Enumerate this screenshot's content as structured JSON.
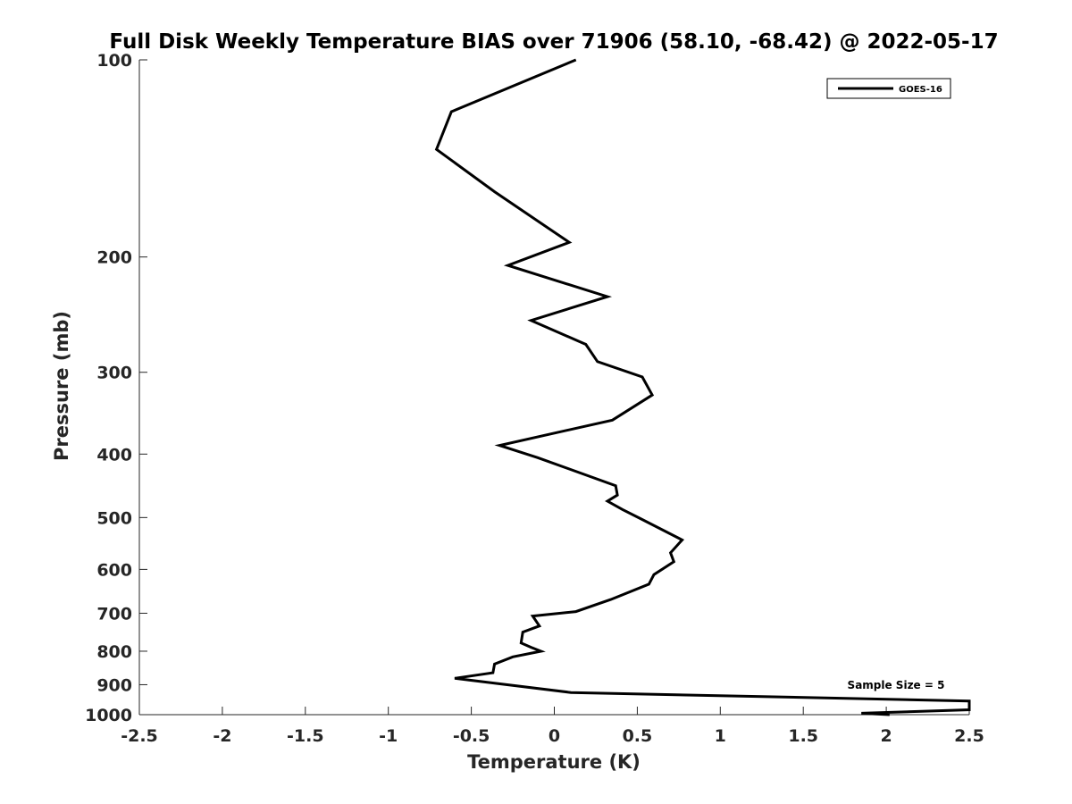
{
  "chart_data": {
    "type": "line",
    "title": "Full Disk Weekly Temperature BIAS over 71906 (58.10, -68.42) @ 2022-05-17",
    "xlabel": "Temperature (K)",
    "ylabel": "Pressure (mb)",
    "xlim": [
      -2.5,
      2.5
    ],
    "ylim": [
      100,
      1000
    ],
    "y_scale": "log",
    "y_reversed": true,
    "x_ticks": [
      "-2.5",
      "-2",
      "-1.5",
      "-1",
      "-0.5",
      "0",
      "0.5",
      "1",
      "1.5",
      "2",
      "2.5"
    ],
    "y_ticks": [
      "100",
      "200",
      "300",
      "400",
      "500",
      "600",
      "700",
      "800",
      "900",
      "1000"
    ],
    "grid": false,
    "legend_position": "top-right",
    "annotation": "Sample Size = 5",
    "series": [
      {
        "name": "GOES-16",
        "color": "#000000",
        "x": [
          0.13,
          -0.62,
          -0.71,
          -0.36,
          0.09,
          -0.28,
          0.32,
          -0.14,
          0.19,
          0.26,
          0.53,
          0.59,
          0.35,
          -0.33,
          -0.1,
          0.37,
          0.38,
          0.32,
          0.41,
          0.52,
          0.77,
          0.7,
          0.72,
          0.6,
          0.57,
          0.34,
          0.13,
          -0.13,
          -0.09,
          -0.19,
          -0.2,
          -0.14,
          -0.08,
          -0.25,
          -0.36,
          -0.37,
          -0.6,
          0.1,
          2.5,
          2.5,
          1.85,
          2.02
        ],
        "y": [
          100,
          120,
          137,
          159,
          190,
          206,
          230,
          250,
          272,
          289,
          305,
          325,
          355,
          388,
          405,
          447,
          462,
          472,
          486,
          502,
          541,
          566,
          584,
          611,
          632,
          667,
          696,
          707,
          732,
          748,
          777,
          789,
          800,
          816,
          837,
          863,
          880,
          925,
          953,
          983,
          995,
          1000
        ]
      }
    ]
  }
}
